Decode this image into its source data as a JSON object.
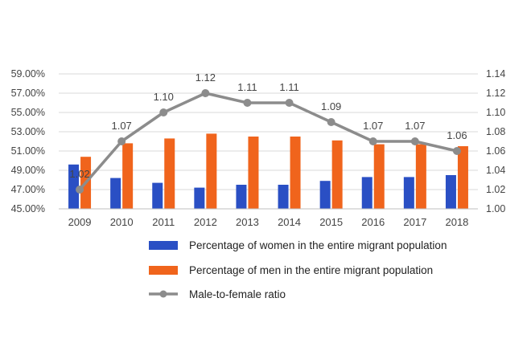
{
  "chart_data": {
    "type": "bar",
    "categories": [
      "2009",
      "2010",
      "2011",
      "2012",
      "2013",
      "2014",
      "2015",
      "2016",
      "2017",
      "2018"
    ],
    "series": [
      {
        "name": "Percentage of women in the entire migrant population",
        "kind": "bar",
        "axis": "left",
        "color": "#2a4fc4",
        "values": [
          49.6,
          48.2,
          47.7,
          47.2,
          47.5,
          47.5,
          47.9,
          48.3,
          48.3,
          48.5
        ]
      },
      {
        "name": "Percentage of men in the entire migrant population",
        "kind": "bar",
        "axis": "left",
        "color": "#f0641c",
        "values": [
          50.4,
          51.8,
          52.3,
          52.8,
          52.5,
          52.5,
          52.1,
          51.7,
          51.7,
          51.5
        ]
      },
      {
        "name": "Male-to-female ratio",
        "kind": "line",
        "axis": "right",
        "color": "#8c8c8c",
        "values": [
          1.02,
          1.07,
          1.1,
          1.12,
          1.11,
          1.11,
          1.09,
          1.07,
          1.07,
          1.06
        ],
        "labels": [
          "1.02",
          "1.07",
          "1.10",
          "1.12",
          "1.11",
          "1.11",
          "1.09",
          "1.07",
          "1.07",
          "1.06"
        ]
      }
    ],
    "y_left": {
      "ylim": [
        45,
        59
      ],
      "ticks": [
        45,
        47,
        49,
        51,
        53,
        55,
        57,
        59
      ],
      "tick_labels": [
        "45.00%",
        "47.00%",
        "49.00%",
        "51.00%",
        "53.00%",
        "55.00%",
        "57.00%",
        "59.00%"
      ]
    },
    "y_right": {
      "ylim": [
        1.0,
        1.14
      ],
      "ticks": [
        1.0,
        1.02,
        1.04,
        1.06,
        1.08,
        1.1,
        1.12,
        1.14
      ],
      "tick_labels": [
        "1.00",
        "1.02",
        "1.04",
        "1.06",
        "1.08",
        "1.10",
        "1.12",
        "1.14"
      ]
    },
    "grid": true,
    "legend": "bottom"
  }
}
